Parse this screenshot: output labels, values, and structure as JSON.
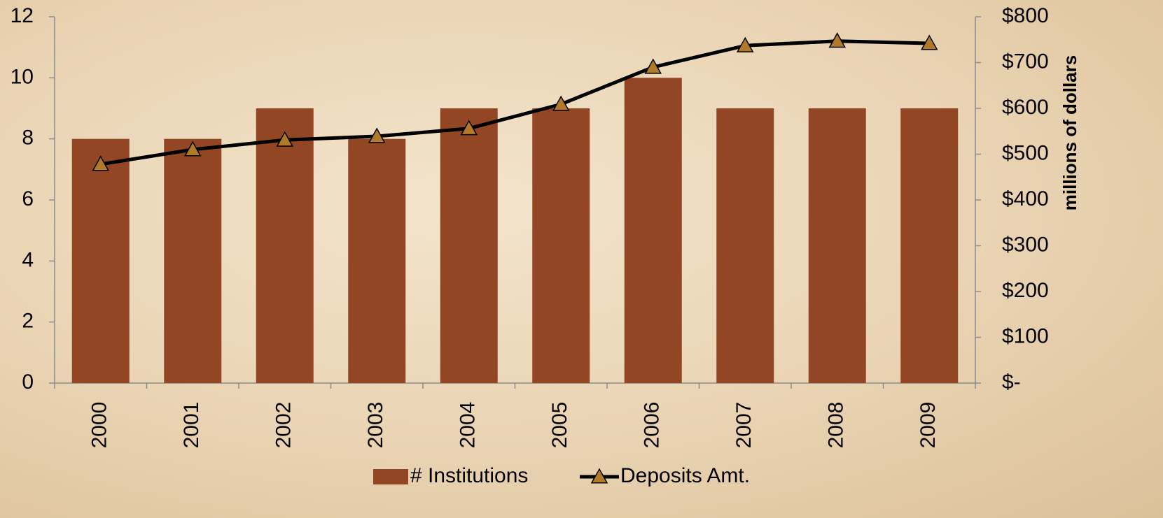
{
  "chart_data": {
    "type": "bar_line",
    "categories": [
      "2000",
      "2001",
      "2002",
      "2003",
      "2004",
      "2005",
      "2006",
      "2007",
      "2008",
      "2009"
    ],
    "series": [
      {
        "name": "# Institutions",
        "type": "bar",
        "color": "#934624",
        "values": [
          8,
          8,
          9,
          8,
          9,
          9,
          10,
          9,
          9,
          9
        ]
      },
      {
        "name": "Deposits Amt.",
        "type": "line",
        "axis": "y2",
        "color": "#000000",
        "marker_color": "#b07a2a",
        "values": [
          478,
          510,
          531,
          539,
          556,
          609,
          690,
          737,
          747,
          742
        ]
      }
    ],
    "ylim": [
      0,
      12
    ],
    "yticks": [
      0,
      2,
      4,
      6,
      8,
      10,
      12
    ],
    "y2lim": [
      0,
      800
    ],
    "y2ticks": [
      {
        "value": 0,
        "label": "$-"
      },
      {
        "value": 100,
        "label": "$100"
      },
      {
        "value": 200,
        "label": "$200"
      },
      {
        "value": 300,
        "label": "$300"
      },
      {
        "value": 400,
        "label": "$400"
      },
      {
        "value": 500,
        "label": "$500"
      },
      {
        "value": 600,
        "label": "$600"
      },
      {
        "value": 700,
        "label": "$700"
      },
      {
        "value": 800,
        "label": "$800"
      }
    ],
    "y2_label": "millions of dollars",
    "grid": false,
    "legend": "bottom"
  }
}
